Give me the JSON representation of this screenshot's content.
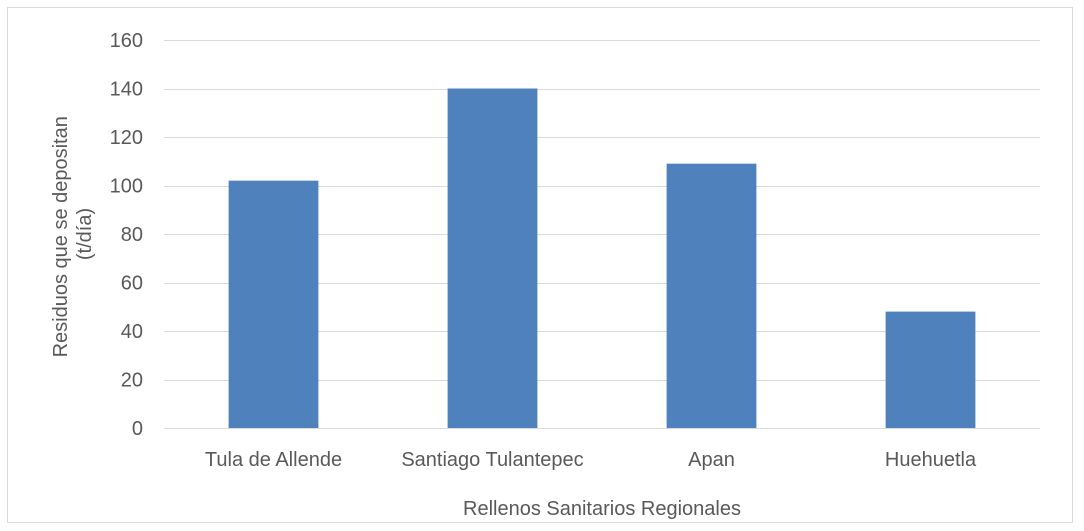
{
  "chart_data": {
    "type": "bar",
    "categories": [
      "Tula de Allende",
      "Santiago Tulantepec",
      "Apan",
      "Huehuetla"
    ],
    "series": [
      {
        "values": [
          102,
          140,
          109,
          48
        ]
      }
    ],
    "title": "",
    "xlabel": "Rellenos Sanitarios Regionales",
    "ylabel_lines": [
      "Residuos que se depositan",
      "(t/día)"
    ],
    "ylim": [
      0,
      160
    ],
    "yticks": [
      0,
      20,
      40,
      60,
      80,
      100,
      120,
      140,
      160
    ],
    "grid": true,
    "legend": "none",
    "bar_color": "#4f81bd",
    "grid_color": "#d9d9d9",
    "text_color": "#595959"
  }
}
